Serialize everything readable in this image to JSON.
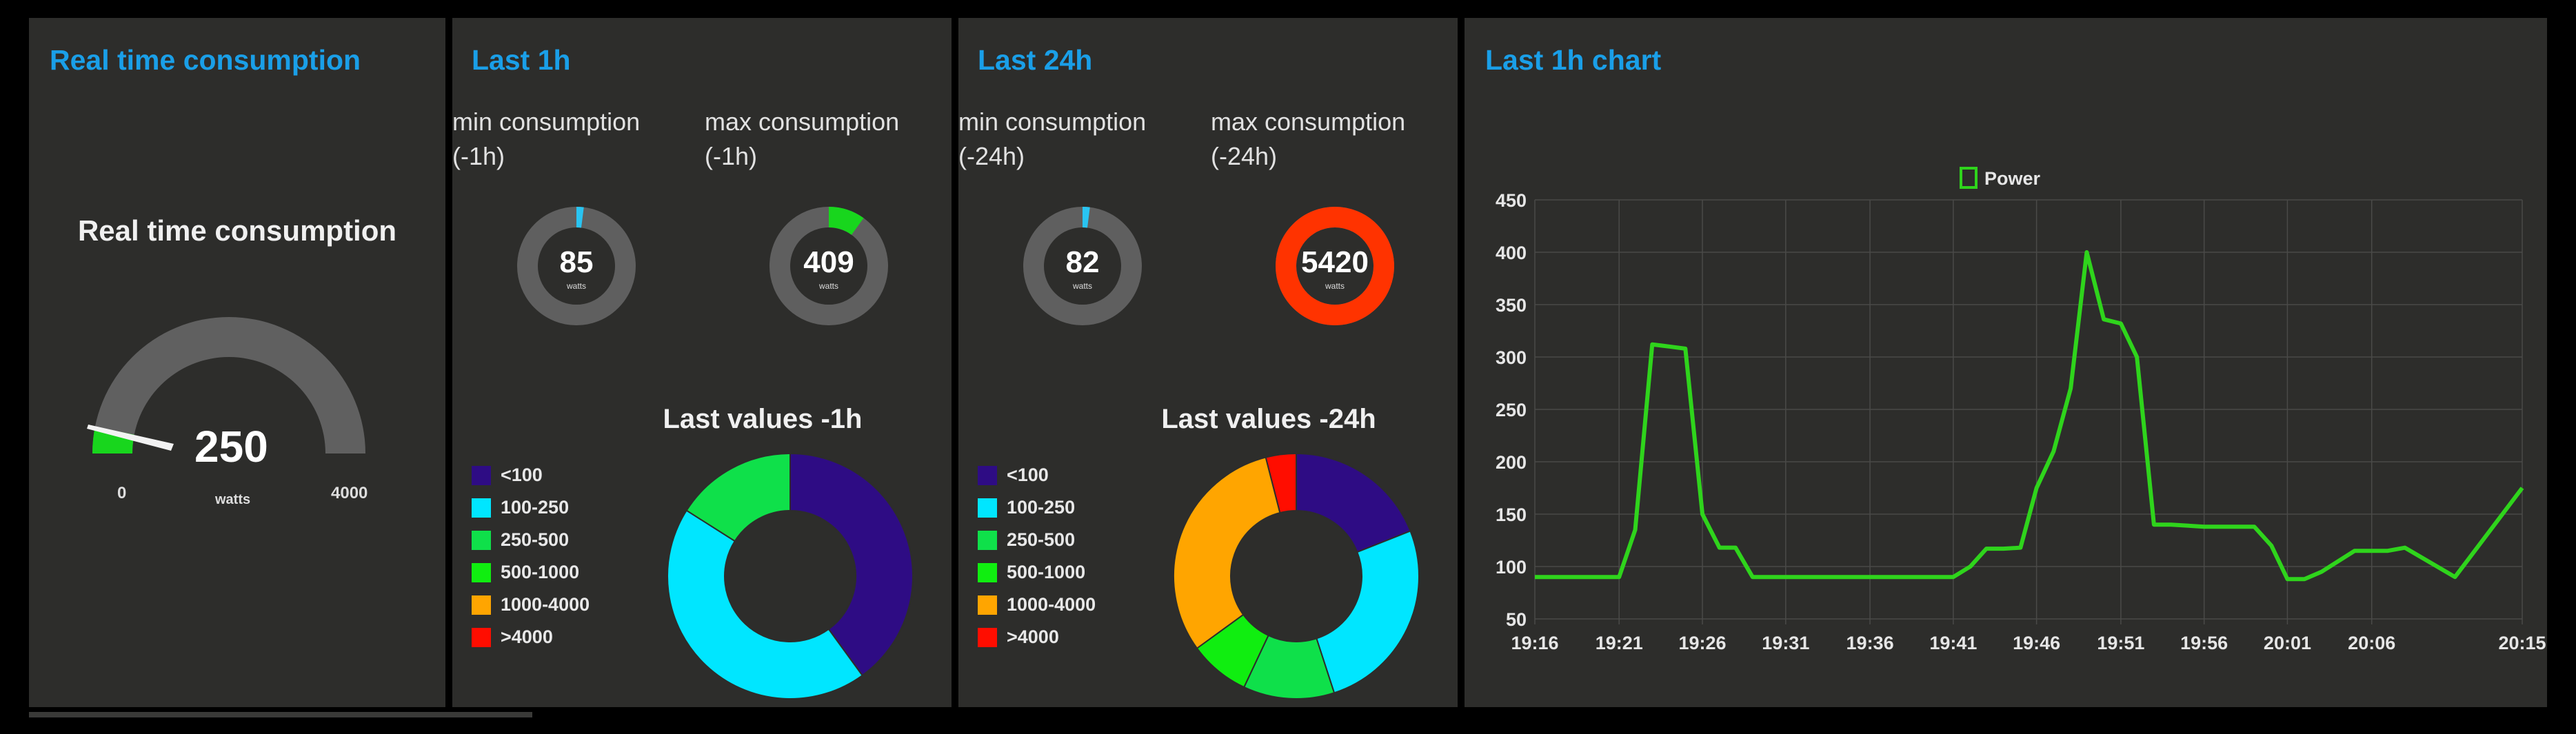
{
  "panels": {
    "realtime": {
      "title": "Real time consumption",
      "gauge": {
        "label": "Real time consumption",
        "value": "250",
        "unit": "watts",
        "min": "0",
        "max": "4000",
        "value_num": 250,
        "max_num": 4000,
        "fill_color": "#18d61d",
        "track_color": "#606060"
      }
    },
    "last1h": {
      "title": "Last 1h",
      "min_label": "min consumption (-1h)",
      "max_label": "max consumption (-1h)",
      "min_value": "85",
      "max_value": "409",
      "unit": "watts",
      "min_fraction": 0.02,
      "max_fraction": 0.1,
      "min_color": "#29c4f2",
      "max_color": "#18d61d",
      "pie_title": "Last values -1h",
      "pie_slices": [
        {
          "label": "<100",
          "value": 40,
          "color": "#2e0c84"
        },
        {
          "label": "100-250",
          "value": 44,
          "color": "#00e6ff"
        },
        {
          "label": "250-500",
          "value": 16,
          "color": "#0fe04a"
        },
        {
          "label": "500-1000",
          "value": 0,
          "color": "#10ee10"
        },
        {
          "label": "1000-4000",
          "value": 0,
          "color": "#ffa500"
        },
        {
          "label": ">4000",
          "value": 0,
          "color": "#ff0d00"
        }
      ]
    },
    "last24h": {
      "title": "Last 24h",
      "min_label": "min consumption (-24h)",
      "max_label": "max consumption (-24h)",
      "min_value": "82",
      "max_value": "5420",
      "unit": "watts",
      "min_fraction": 0.02,
      "max_fraction": 1.0,
      "min_color": "#29c4f2",
      "max_color": "#ff3300",
      "pie_title": "Last values -24h",
      "pie_slices": [
        {
          "label": "<100",
          "value": 19,
          "color": "#2e0c84"
        },
        {
          "label": "100-250",
          "value": 26,
          "color": "#00e6ff"
        },
        {
          "label": "250-500",
          "value": 12,
          "color": "#0fe04a"
        },
        {
          "label": "500-1000",
          "value": 8,
          "color": "#10ee10"
        },
        {
          "label": "1000-4000",
          "value": 31,
          "color": "#ffa500"
        },
        {
          "label": ">4000",
          "value": 4,
          "color": "#ff0d00"
        }
      ]
    },
    "chart1h": {
      "title": "Last 1h chart"
    }
  },
  "chart_data": {
    "type": "line",
    "title": "Last 1h chart",
    "legend": [
      "Power"
    ],
    "legend_position": "top-center",
    "series": [
      {
        "name": "Power",
        "color": "#2fd41c",
        "x": [
          19.266,
          19.333,
          19.333,
          19.34,
          19.35,
          19.366,
          19.383,
          19.4,
          19.416,
          19.433,
          19.45,
          19.466,
          19.483,
          19.516,
          19.55,
          19.583,
          19.6,
          19.633,
          19.683,
          19.7,
          19.716,
          19.733,
          19.75,
          19.766,
          19.783,
          19.8,
          19.816,
          19.833,
          19.85,
          19.866,
          19.883,
          19.9,
          19.933,
          19.966,
          19.983,
          20.0,
          20.016,
          20.033,
          20.05,
          20.083,
          20.1,
          20.116,
          20.133,
          20.183,
          20.25
        ],
        "y": [
          90,
          90,
          90,
          90,
          90,
          135,
          312,
          310,
          308,
          150,
          118,
          118,
          90,
          90,
          90,
          90,
          90,
          90,
          90,
          100,
          117,
          117,
          118,
          175,
          210,
          270,
          400,
          336,
          332,
          300,
          140,
          140,
          138,
          138,
          138,
          120,
          88,
          88,
          95,
          115,
          115,
          115,
          118,
          90,
          175
        ]
      }
    ],
    "x_ticks": [
      "19:16",
      "19:21",
      "19:26",
      "19:31",
      "19:36",
      "19:41",
      "19:46",
      "19:51",
      "19:56",
      "20:01",
      "20:06",
      "20:15"
    ],
    "x_tick_values": [
      19.266,
      19.35,
      19.433,
      19.516,
      19.6,
      19.683,
      19.766,
      19.85,
      19.933,
      20.016,
      20.1,
      20.25
    ],
    "y_ticks": [
      "50",
      "100",
      "150",
      "200",
      "250",
      "300",
      "350",
      "400",
      "450"
    ],
    "ylim": [
      50,
      450
    ],
    "grid": true
  }
}
